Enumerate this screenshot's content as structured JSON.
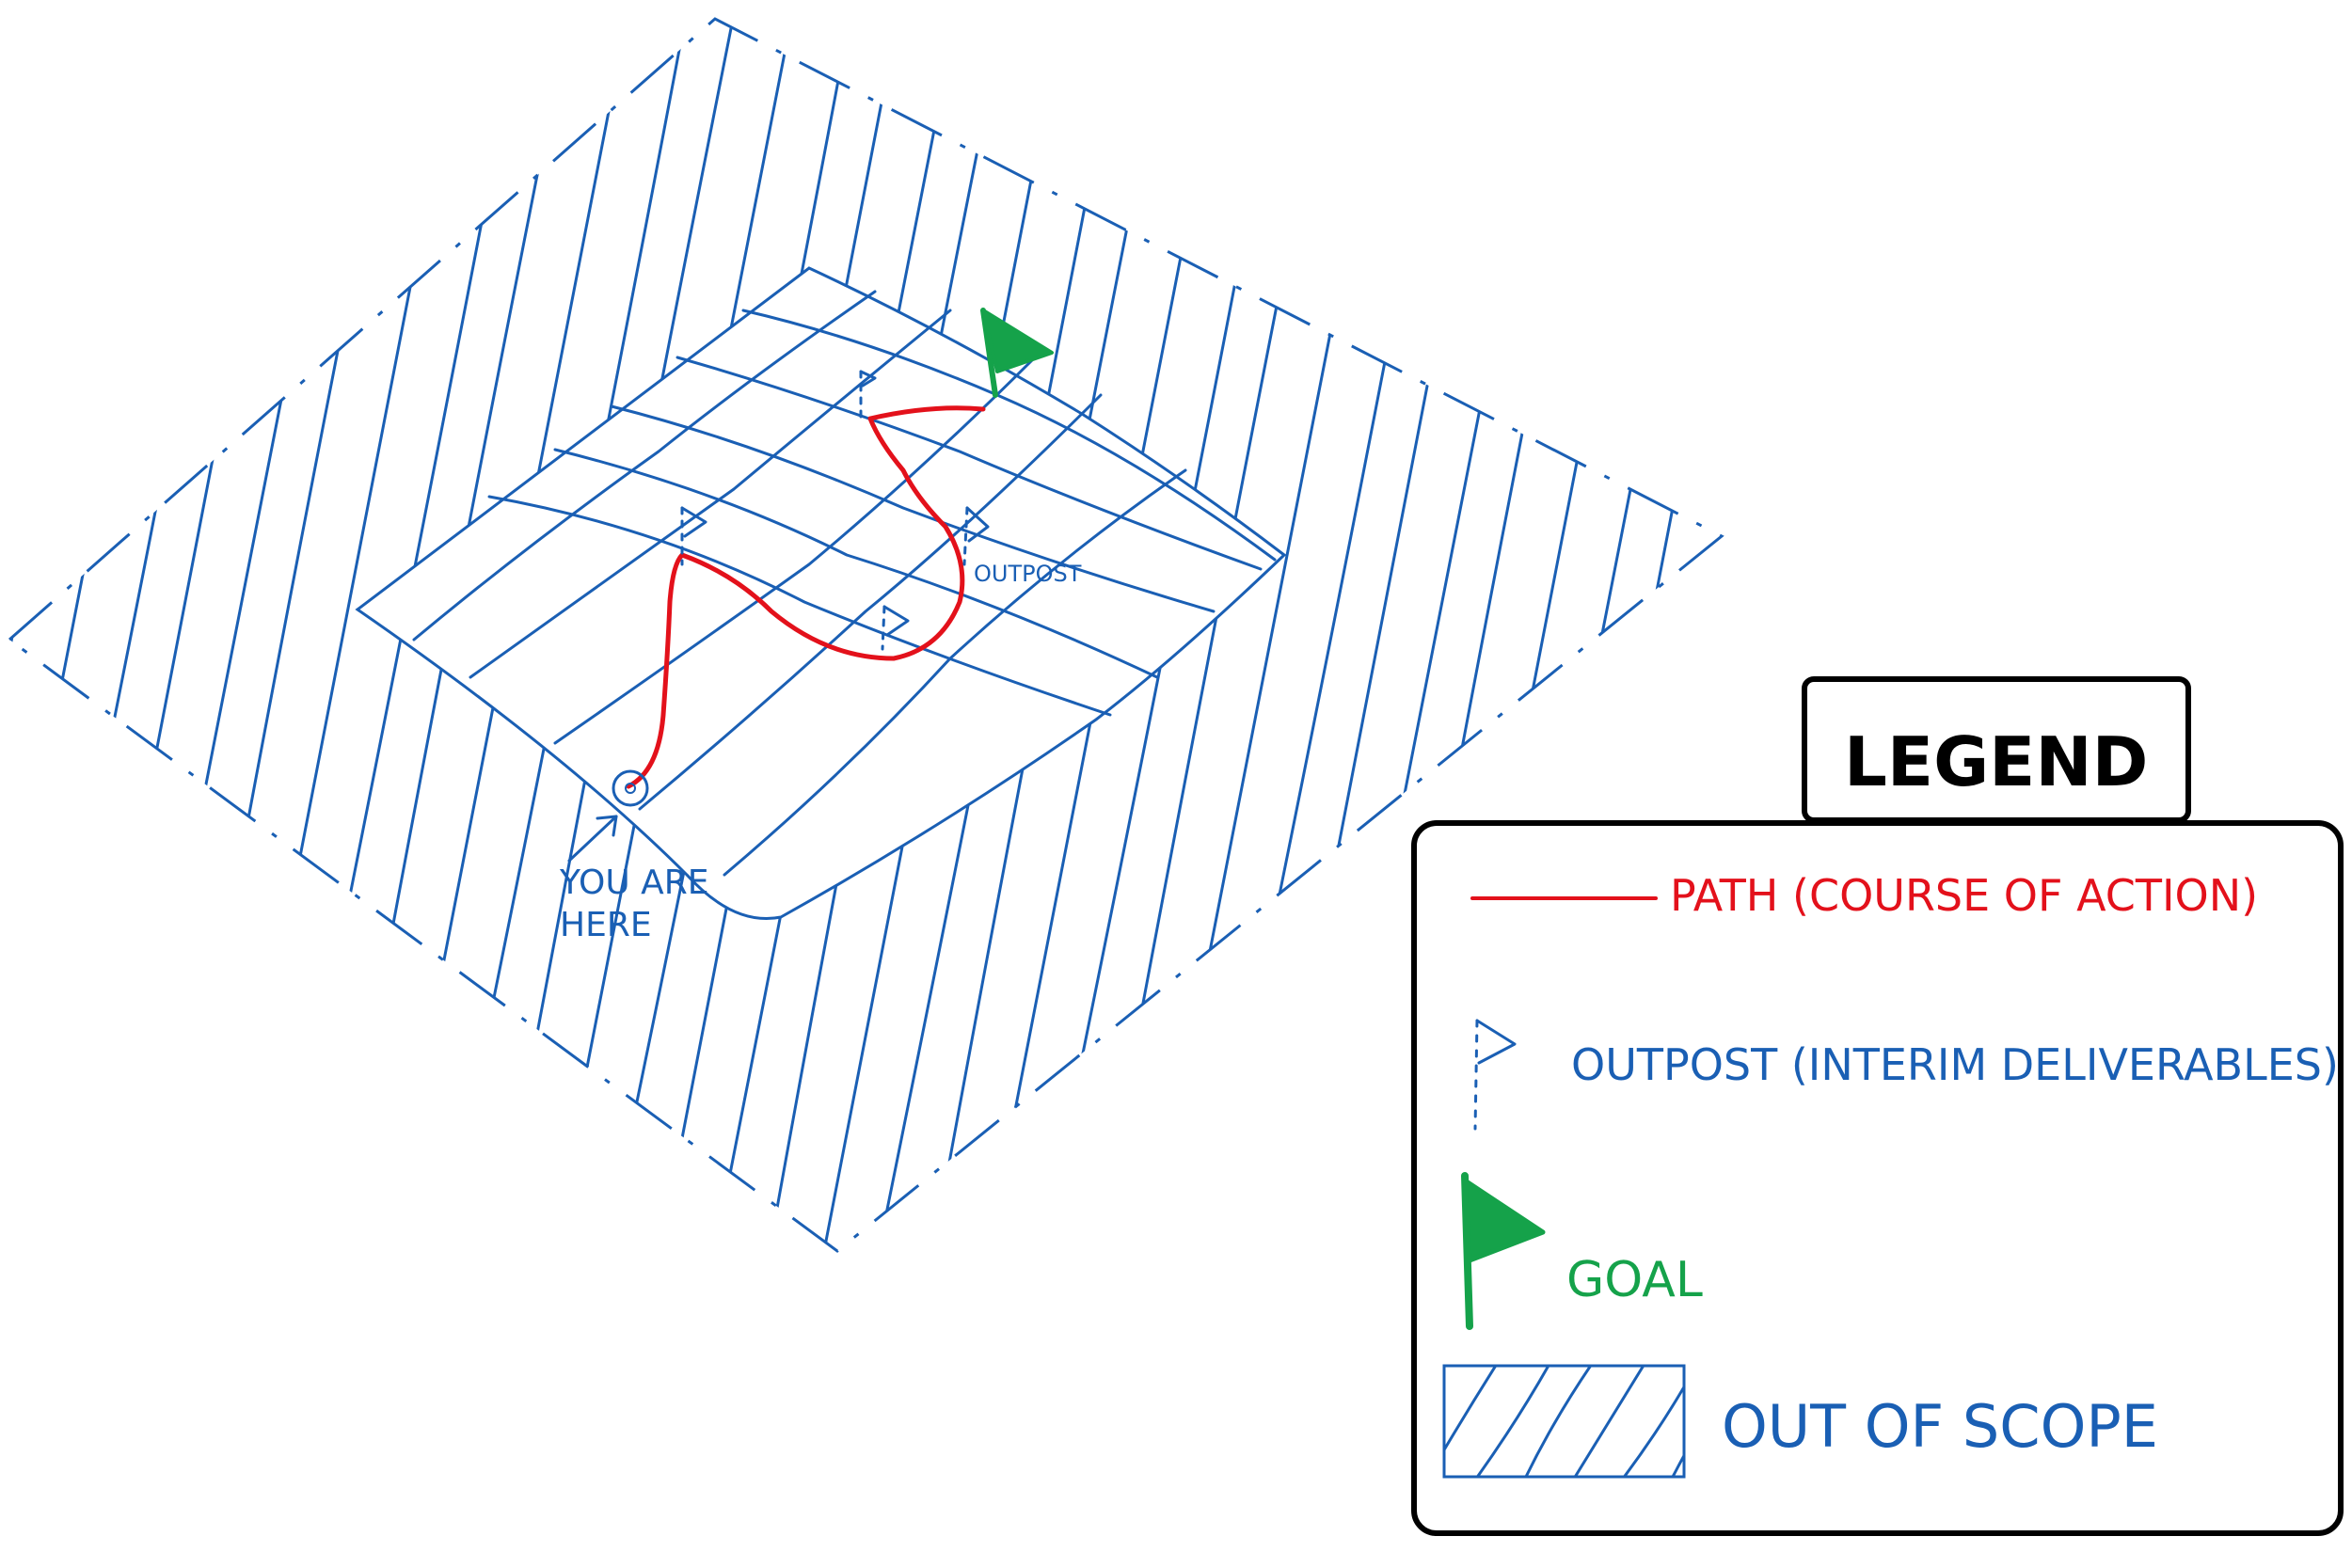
{
  "map": {
    "you_are_here_line1": "YOU ARE",
    "you_are_here_line2": "HERE",
    "outpost_label": "OUTPOST"
  },
  "legend": {
    "title": "LEGEND",
    "path_label": "PATH (COURSE OF ACTION)",
    "outpost_label": "OUTPOST (INTERIM DELIVERABLES)",
    "goal_label": "GOAL",
    "out_of_scope_label": "OUT OF SCOPE"
  },
  "colors": {
    "blue": "#1a5fb4",
    "red": "#e3111b",
    "green": "#15a24a",
    "black": "#000000"
  }
}
